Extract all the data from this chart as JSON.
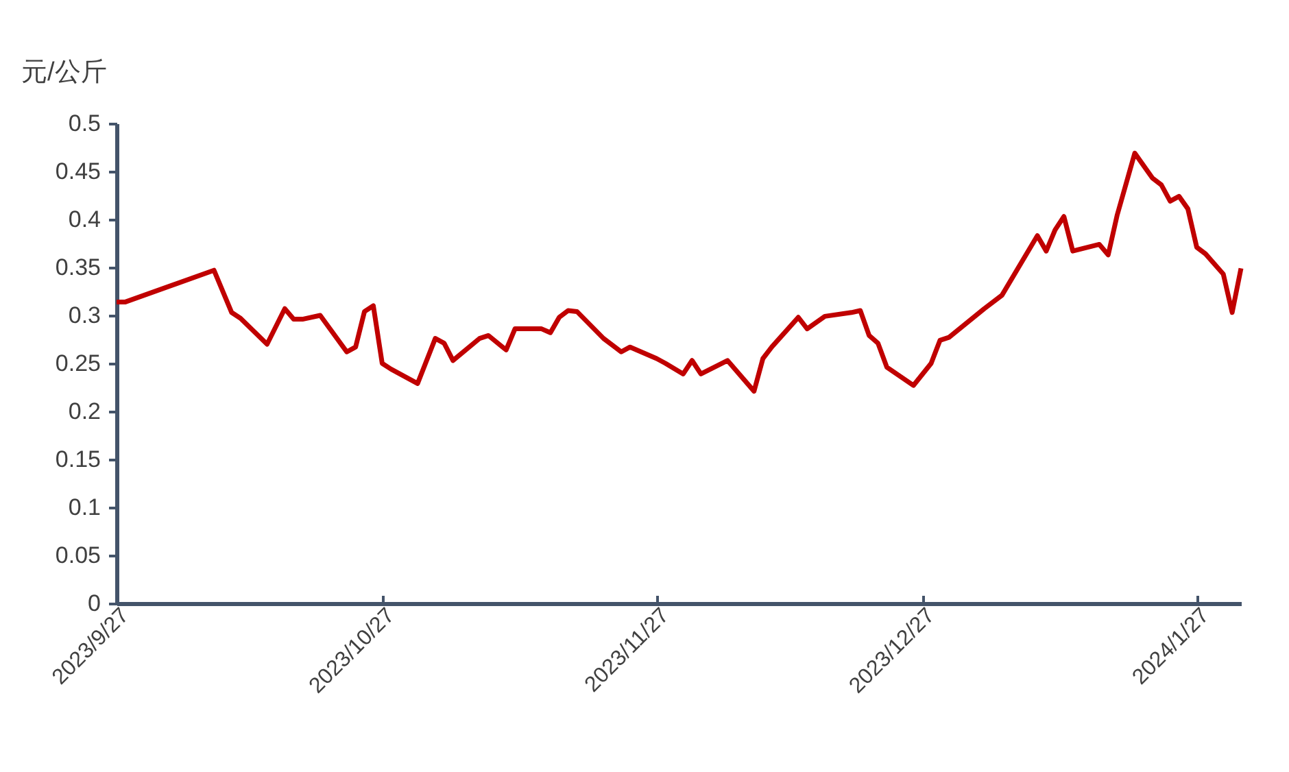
{
  "chart_data": {
    "type": "line",
    "ylabel": "元/公斤",
    "x": [
      "2023-09-27",
      "2023-09-28",
      "2023-10-08",
      "2023-10-10",
      "2023-10-11",
      "2023-10-14",
      "2023-10-16",
      "2023-10-17",
      "2023-10-18",
      "2023-10-20",
      "2023-10-23",
      "2023-10-24",
      "2023-10-25",
      "2023-10-26",
      "2023-10-27",
      "2023-10-28",
      "2023-10-31",
      "2023-11-02",
      "2023-11-03",
      "2023-11-04",
      "2023-11-07",
      "2023-11-08",
      "2023-11-10",
      "2023-11-11",
      "2023-11-14",
      "2023-11-15",
      "2023-11-16",
      "2023-11-17",
      "2023-11-18",
      "2023-11-21",
      "2023-11-23",
      "2023-11-24",
      "2023-11-27",
      "2023-11-28",
      "2023-11-30",
      "2023-12-01",
      "2023-12-02",
      "2023-12-05",
      "2023-12-08",
      "2023-12-09",
      "2023-12-10",
      "2023-12-13",
      "2023-12-14",
      "2023-12-16",
      "2023-12-19",
      "2023-12-20",
      "2023-12-21",
      "2023-12-22",
      "2023-12-23",
      "2023-12-26",
      "2023-12-28",
      "2023-12-29",
      "2023-12-30",
      "2024-01-03",
      "2024-01-05",
      "2024-01-09",
      "2024-01-10",
      "2024-01-11",
      "2024-01-12",
      "2024-01-13",
      "2024-01-16",
      "2024-01-17",
      "2024-01-18",
      "2024-01-20",
      "2024-01-22",
      "2024-01-23",
      "2024-01-24",
      "2024-01-25",
      "2024-01-26",
      "2024-01-27",
      "2024-01-28",
      "2024-01-30",
      "2024-01-31",
      "2024-02-01"
    ],
    "series": [
      {
        "color": "#c00000",
        "values": [
          0.314,
          0.314,
          0.347,
          0.303,
          0.297,
          0.27,
          0.307,
          0.296,
          0.296,
          0.3,
          0.262,
          0.267,
          0.304,
          0.31,
          0.25,
          0.244,
          0.229,
          0.276,
          0.271,
          0.253,
          0.276,
          0.279,
          0.264,
          0.286,
          0.286,
          0.282,
          0.298,
          0.305,
          0.304,
          0.276,
          0.262,
          0.267,
          0.255,
          0.25,
          0.239,
          0.253,
          0.239,
          0.253,
          0.221,
          0.255,
          0.267,
          0.298,
          0.286,
          0.299,
          0.303,
          0.305,
          0.279,
          0.271,
          0.246,
          0.227,
          0.25,
          0.274,
          0.277,
          0.307,
          0.321,
          0.383,
          0.367,
          0.389,
          0.403,
          0.367,
          0.374,
          0.363,
          0.404,
          0.469,
          0.443,
          0.436,
          0.419,
          0.424,
          0.411,
          0.371,
          0.364,
          0.343,
          0.303,
          0.349
        ]
      }
    ],
    "xlim": [
      "2023-09-27",
      "2024-02-01"
    ],
    "xticks": [
      {
        "value": "2023-09-27",
        "label": "2023/9/27"
      },
      {
        "value": "2023-10-27",
        "label": "2023/10/27"
      },
      {
        "value": "2023-11-27",
        "label": "2023/11/27"
      },
      {
        "value": "2023-12-27",
        "label": "2023/12/27"
      },
      {
        "value": "2024-01-27",
        "label": "2024/1/27"
      }
    ],
    "ylim": [
      0,
      0.5
    ],
    "yticks": [
      0,
      0.05,
      0.1,
      0.15,
      0.2,
      0.25,
      0.3,
      0.35,
      0.4,
      0.45,
      0.5
    ],
    "grid": false,
    "marker": "none",
    "line_style": "solid"
  }
}
